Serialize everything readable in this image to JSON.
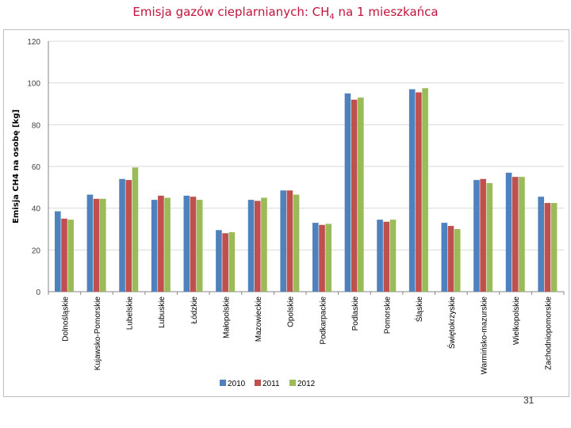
{
  "header": {
    "title_prefix": "Emisja gazów cieplarnianych: CH",
    "title_sub": "4",
    "title_suffix": " na 1 mieszkańca"
  },
  "colors": {
    "2010": "#4f81bd",
    "2011": "#c0504d",
    "2012": "#9bbb59",
    "grid": "#d9d9d9",
    "axis": "#868686"
  },
  "chart_data": {
    "type": "bar",
    "ylabel": "Emisja CH4 na osobę [kg]",
    "xlabel": "",
    "ylim": [
      0,
      120
    ],
    "yticks": [
      "0",
      "20",
      "40",
      "60",
      "80",
      "100",
      "120"
    ],
    "grid": true,
    "legend": "bottom",
    "categories": [
      "Dolnośląskie",
      "Kujawsko-Pomorskie",
      "Lubelskie",
      "Lubuskie",
      "Łódzkie",
      "Małopolskie",
      "Mazowieckie",
      "Opolskie",
      "Podkarpackie",
      "Podlaskie",
      "Pomorskie",
      "Śląskie",
      "Świętokrzyskie",
      "Warmińsko-mazurskie",
      "Wielkopolskie",
      "Zachodniopomorskie"
    ],
    "series": [
      {
        "name": "2010",
        "values": [
          38.5,
          46.5,
          54,
          44,
          46,
          29.5,
          44,
          48.5,
          33,
          95,
          34.5,
          97,
          33,
          53.5,
          57,
          45.5
        ]
      },
      {
        "name": "2011",
        "values": [
          35,
          44.5,
          53.5,
          46,
          45.5,
          28,
          43.5,
          48.5,
          32,
          92,
          33.5,
          95.5,
          31.5,
          54,
          55,
          42.5
        ]
      },
      {
        "name": "2012",
        "values": [
          34.5,
          44.5,
          59.5,
          45,
          44,
          28.5,
          45,
          46.5,
          32.5,
          93,
          34.5,
          97.5,
          30,
          52,
          55,
          42.5
        ]
      }
    ]
  },
  "footer": {
    "page_number": "31"
  }
}
